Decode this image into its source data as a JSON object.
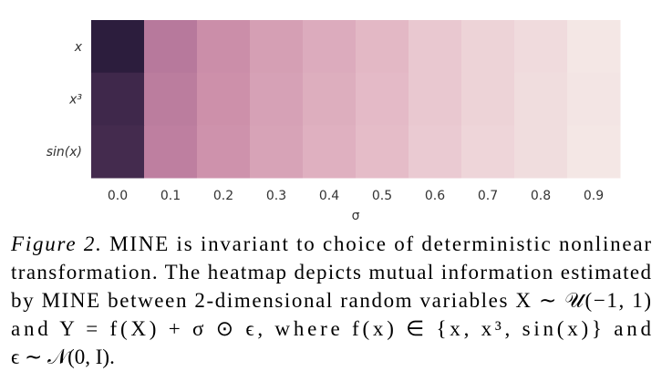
{
  "chart_data": {
    "type": "heatmap",
    "xlabel": "σ",
    "categories": [
      "0.0",
      "0.1",
      "0.2",
      "0.3",
      "0.4",
      "0.5",
      "0.6",
      "0.7",
      "0.8",
      "0.9"
    ],
    "rows": [
      "x",
      "x³",
      "sin(x)"
    ],
    "values": [
      [
        0.97,
        0.6,
        0.5,
        0.42,
        0.36,
        0.3,
        0.22,
        0.17,
        0.13,
        0.07
      ],
      [
        0.93,
        0.58,
        0.49,
        0.41,
        0.35,
        0.29,
        0.22,
        0.17,
        0.12,
        0.08
      ],
      [
        0.92,
        0.57,
        0.48,
        0.4,
        0.34,
        0.28,
        0.21,
        0.16,
        0.12,
        0.07
      ]
    ],
    "colormap": [
      "#f4e7e5",
      "#e4b9c6",
      "#c98aa6",
      "#965a89",
      "#2c1d3d"
    ]
  },
  "caption": {
    "label": "Figure 2.",
    "lines": [
      " MINE is invariant to choice of deterministic nonlinear",
      "transformation. The heatmap depicts mutual information estimated",
      "by MINE between 2-dimensional random variables X ∼ 𝒰(−1, 1)",
      "and Y = f(X) + σ ⊙ ϵ, where f(x) ∈ {x, x³, sin(x)} and",
      "ϵ ∼ 𝒩(0, I)."
    ]
  }
}
